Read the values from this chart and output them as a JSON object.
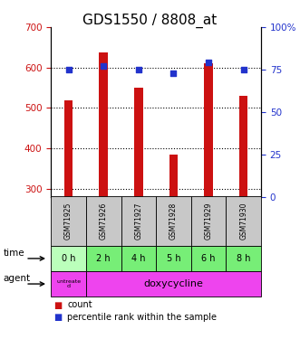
{
  "title": "GDS1550 / 8808_at",
  "samples": [
    "GSM71925",
    "GSM71926",
    "GSM71927",
    "GSM71928",
    "GSM71929",
    "GSM71930"
  ],
  "counts": [
    519,
    638,
    549,
    385,
    610,
    530
  ],
  "percentiles": [
    75,
    77,
    75,
    73,
    79,
    75
  ],
  "time_labels": [
    "0 h",
    "2 h",
    "4 h",
    "5 h",
    "6 h",
    "8 h"
  ],
  "ylim_left": [
    280,
    700
  ],
  "ylim_right": [
    0,
    100
  ],
  "yticks_left": [
    300,
    400,
    500,
    600,
    700
  ],
  "yticks_right": [
    0,
    25,
    50,
    75,
    100
  ],
  "bar_color": "#cc1111",
  "dot_color": "#2233cc",
  "bg_color": "#ffffff",
  "sample_box_color": "#c8c8c8",
  "time_box_color_untreated": "#bbffbb",
  "time_box_color_treated": "#77ee77",
  "agent_color": "#ee44ee",
  "title_fontsize": 11,
  "tick_fontsize": 7.5,
  "bar_width": 0.25
}
